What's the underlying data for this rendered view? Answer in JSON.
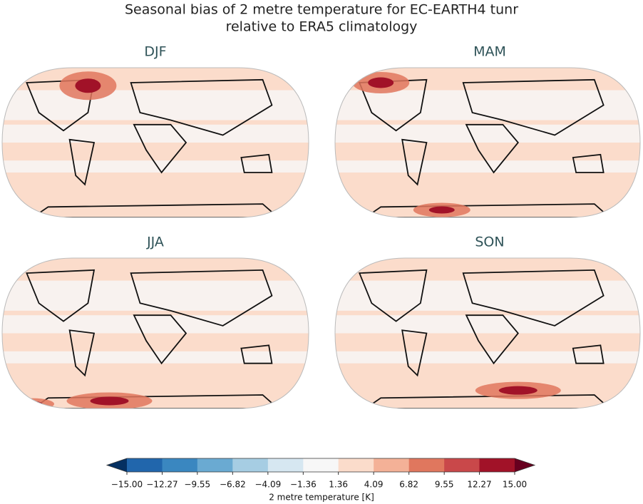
{
  "title_lines": [
    "Seasonal bias of 2 metre temperature for EC-EARTH4 tunr",
    "relative to ERA5 climatology"
  ],
  "panels": [
    "DJF",
    "MAM",
    "JJA",
    "SON"
  ],
  "colorbar": {
    "label": "2 metre temperature [K]",
    "ticks": [
      {
        "value": -15,
        "label": "−15.00"
      },
      {
        "value": -12.27,
        "label": "−12.27"
      },
      {
        "value": -9.55,
        "label": "−9.55"
      },
      {
        "value": -6.82,
        "label": "−6.82"
      },
      {
        "value": -4.09,
        "label": "−4.09"
      },
      {
        "value": -1.36,
        "label": "−1.36"
      },
      1.36,
      4.09,
      6.82,
      9.55,
      12.27,
      {
        "value": 15,
        "label": "15.00"
      }
    ],
    "colors": [
      "#2166ac",
      "#3a87c0",
      "#6aaad2",
      "#a6cde3",
      "#d6e7f1",
      "#f7f7f7",
      "#fbdccb",
      "#f4b197",
      "#e0775e",
      "#c9484a",
      "#a11228"
    ],
    "extend_colors": [
      "#053061",
      "#67001f"
    ]
  }
}
